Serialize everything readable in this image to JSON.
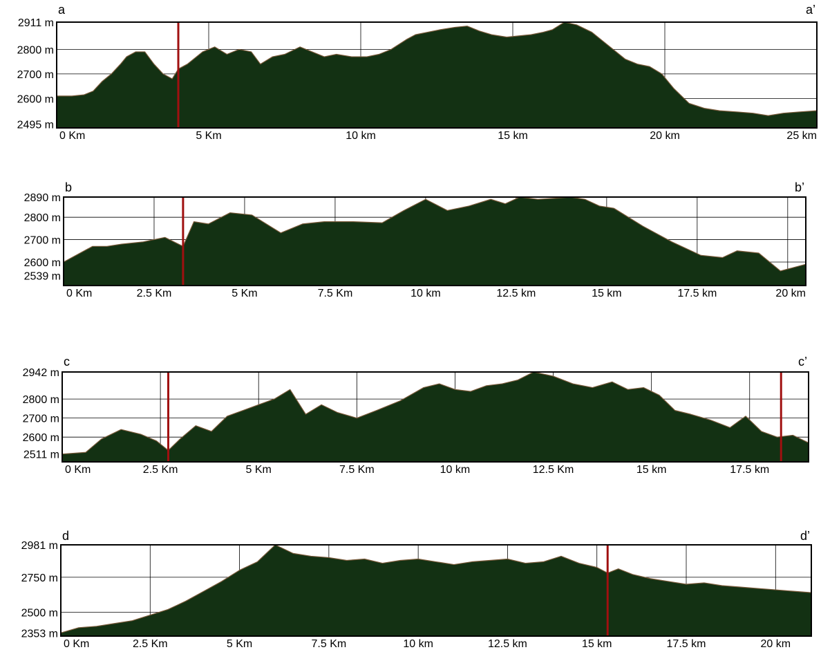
{
  "chart_data": [
    {
      "type": "area",
      "start_label": "a",
      "end_label": "a’",
      "x_tick_values": [
        0,
        5,
        10,
        15,
        20,
        25
      ],
      "x_tick_labels": [
        "0 Km",
        "5 Km",
        "10 km",
        "15 km",
        "20 km",
        "25 km"
      ],
      "xlim": [
        0,
        25
      ],
      "y_tick_values": [
        2495,
        2600,
        2700,
        2800,
        2911
      ],
      "y_tick_labels": [
        "2495 m",
        "2600 m",
        "2700 m",
        "2800 m",
        "2911 m"
      ],
      "ylim": [
        2480,
        2911
      ],
      "grid": true,
      "marker_lines_x": [
        4.0
      ],
      "fill_color": "#133113",
      "outline_color": "#7a5a3a",
      "marker_color": "#a01010",
      "x": [
        0,
        0.5,
        0.9,
        1.2,
        1.5,
        1.8,
        2.1,
        2.3,
        2.6,
        2.9,
        3.2,
        3.5,
        3.8,
        4.0,
        4.3,
        4.8,
        5.2,
        5.6,
        6.0,
        6.4,
        6.7,
        7.1,
        7.5,
        8.0,
        8.4,
        8.8,
        9.2,
        9.7,
        10.2,
        10.6,
        11.0,
        11.5,
        11.8,
        12.2,
        12.6,
        13.1,
        13.5,
        13.9,
        14.3,
        14.8,
        15.2,
        15.6,
        16.0,
        16.3,
        16.7,
        17.1,
        17.6,
        18.1,
        18.7,
        19.1,
        19.5,
        19.9,
        20.3,
        20.8,
        21.3,
        21.8,
        22.4,
        22.9,
        23.4,
        23.9,
        24.4,
        25.0
      ],
      "y": [
        2610,
        2610,
        2615,
        2630,
        2670,
        2700,
        2740,
        2770,
        2790,
        2790,
        2740,
        2700,
        2680,
        2720,
        2740,
        2790,
        2810,
        2780,
        2800,
        2790,
        2740,
        2770,
        2780,
        2810,
        2790,
        2770,
        2780,
        2770,
        2770,
        2780,
        2800,
        2840,
        2860,
        2870,
        2880,
        2890,
        2895,
        2875,
        2860,
        2850,
        2855,
        2860,
        2870,
        2880,
        2911,
        2900,
        2870,
        2820,
        2760,
        2740,
        2730,
        2700,
        2640,
        2580,
        2560,
        2550,
        2545,
        2540,
        2530,
        2540,
        2545,
        2550
      ]
    },
    {
      "type": "area",
      "start_label": "b",
      "end_label": "b’",
      "x_tick_values": [
        0,
        2.5,
        5,
        7.5,
        10,
        12.5,
        15,
        17.5,
        20
      ],
      "x_tick_labels": [
        "0 Km",
        "2.5 Km",
        "5 Km",
        "7.5 Km",
        "10 km",
        "12.5 km",
        "15 km",
        "17.5 km",
        "20 km"
      ],
      "xlim": [
        0,
        20.5
      ],
      "y_tick_values": [
        2539,
        2600,
        2700,
        2800,
        2890
      ],
      "y_tick_labels": [
        "2539 m",
        "2600 m",
        "2700 m",
        "2800 m",
        "2890 m"
      ],
      "ylim": [
        2495,
        2890
      ],
      "grid": true,
      "marker_lines_x": [
        3.3
      ],
      "fill_color": "#133113",
      "outline_color": "#7a5a3a",
      "marker_color": "#a01010",
      "x": [
        0,
        0.8,
        1.2,
        1.6,
        2.2,
        2.8,
        3.3,
        3.6,
        4.0,
        4.6,
        5.2,
        6.0,
        6.6,
        7.2,
        8.0,
        8.8,
        9.4,
        10.0,
        10.6,
        11.2,
        11.8,
        12.2,
        12.6,
        13.1,
        13.6,
        14.0,
        14.4,
        14.8,
        15.2,
        16.0,
        16.8,
        17.6,
        18.2,
        18.6,
        19.2,
        19.8,
        20.5
      ],
      "y": [
        2600,
        2670,
        2670,
        2680,
        2690,
        2710,
        2670,
        2780,
        2770,
        2820,
        2810,
        2730,
        2770,
        2780,
        2780,
        2775,
        2830,
        2880,
        2830,
        2850,
        2880,
        2860,
        2890,
        2880,
        2885,
        2890,
        2880,
        2850,
        2840,
        2760,
        2690,
        2630,
        2620,
        2650,
        2640,
        2560,
        2590
      ]
    },
    {
      "type": "area",
      "start_label": "c",
      "end_label": "c’",
      "x_tick_values": [
        0,
        2.5,
        5,
        7.5,
        10,
        12.5,
        15,
        17.5
      ],
      "x_tick_labels": [
        "0 Km",
        "2.5 Km",
        "5 Km",
        "7.5 Km",
        "10 km",
        "12.5 Km",
        "15 km",
        "17.5 km"
      ],
      "xlim": [
        0,
        19.0
      ],
      "y_tick_values": [
        2511,
        2600,
        2700,
        2800,
        2942
      ],
      "y_tick_labels": [
        "2511 m",
        "2600 m",
        "2700 m",
        "2800 m",
        "2942 m"
      ],
      "ylim": [
        2470,
        2942
      ],
      "grid": true,
      "marker_lines_x": [
        2.7,
        18.3
      ],
      "fill_color": "#133113",
      "outline_color": "#7a5a3a",
      "marker_color": "#a01010",
      "x": [
        0,
        0.6,
        1.0,
        1.5,
        2.0,
        2.4,
        2.7,
        3.0,
        3.4,
        3.8,
        4.2,
        4.6,
        5.0,
        5.4,
        5.8,
        6.2,
        6.6,
        7.0,
        7.5,
        8.0,
        8.6,
        9.2,
        9.6,
        10.0,
        10.4,
        10.8,
        11.2,
        11.6,
        12.0,
        12.5,
        13.0,
        13.5,
        14.0,
        14.4,
        14.8,
        15.2,
        15.6,
        16.0,
        16.5,
        17.0,
        17.4,
        17.8,
        18.2,
        18.6,
        19.0
      ],
      "y": [
        2511,
        2520,
        2590,
        2640,
        2615,
        2580,
        2530,
        2590,
        2660,
        2630,
        2710,
        2740,
        2770,
        2800,
        2850,
        2720,
        2770,
        2730,
        2700,
        2740,
        2790,
        2860,
        2880,
        2850,
        2840,
        2870,
        2880,
        2900,
        2942,
        2920,
        2880,
        2860,
        2890,
        2850,
        2860,
        2820,
        2740,
        2720,
        2690,
        2650,
        2710,
        2630,
        2600,
        2610,
        2570
      ]
    },
    {
      "type": "area",
      "start_label": "d",
      "end_label": "d’",
      "x_tick_values": [
        0,
        2.5,
        5,
        7.5,
        10,
        12.5,
        15,
        17.5,
        20
      ],
      "x_tick_labels": [
        "0 Km",
        "2.5 Km",
        "5 Km",
        "7.5 Km",
        "10 km",
        "12.5 km",
        "15 km",
        "17.5 km",
        "20 km"
      ],
      "xlim": [
        0,
        21.0
      ],
      "y_tick_values": [
        2353,
        2500,
        2750,
        2981
      ],
      "y_tick_labels": [
        "2353 m",
        "2500 m",
        "2750 m",
        "2981 m"
      ],
      "ylim": [
        2330,
        2981
      ],
      "grid": true,
      "marker_lines_x": [
        15.3
      ],
      "fill_color": "#133113",
      "outline_color": "#7a5a3a",
      "marker_color": "#a01010",
      "x": [
        0,
        0.5,
        1.0,
        1.5,
        2.0,
        2.5,
        3.0,
        3.5,
        4.0,
        4.5,
        5.0,
        5.5,
        6.0,
        6.5,
        7.0,
        7.5,
        8.0,
        8.5,
        9.0,
        9.5,
        10.0,
        10.5,
        11.0,
        11.5,
        12.0,
        12.5,
        13.0,
        13.5,
        14.0,
        14.5,
        15.0,
        15.3,
        15.6,
        16.0,
        16.5,
        17.0,
        17.5,
        18.0,
        18.5,
        19.0,
        19.5,
        20.0,
        20.5,
        21.0
      ],
      "y": [
        2353,
        2390,
        2400,
        2420,
        2440,
        2480,
        2520,
        2580,
        2650,
        2720,
        2800,
        2860,
        2981,
        2920,
        2900,
        2890,
        2870,
        2880,
        2850,
        2870,
        2880,
        2860,
        2840,
        2860,
        2870,
        2880,
        2850,
        2860,
        2900,
        2850,
        2820,
        2780,
        2810,
        2770,
        2740,
        2720,
        2700,
        2710,
        2690,
        2680,
        2670,
        2660,
        2650,
        2640
      ]
    }
  ]
}
